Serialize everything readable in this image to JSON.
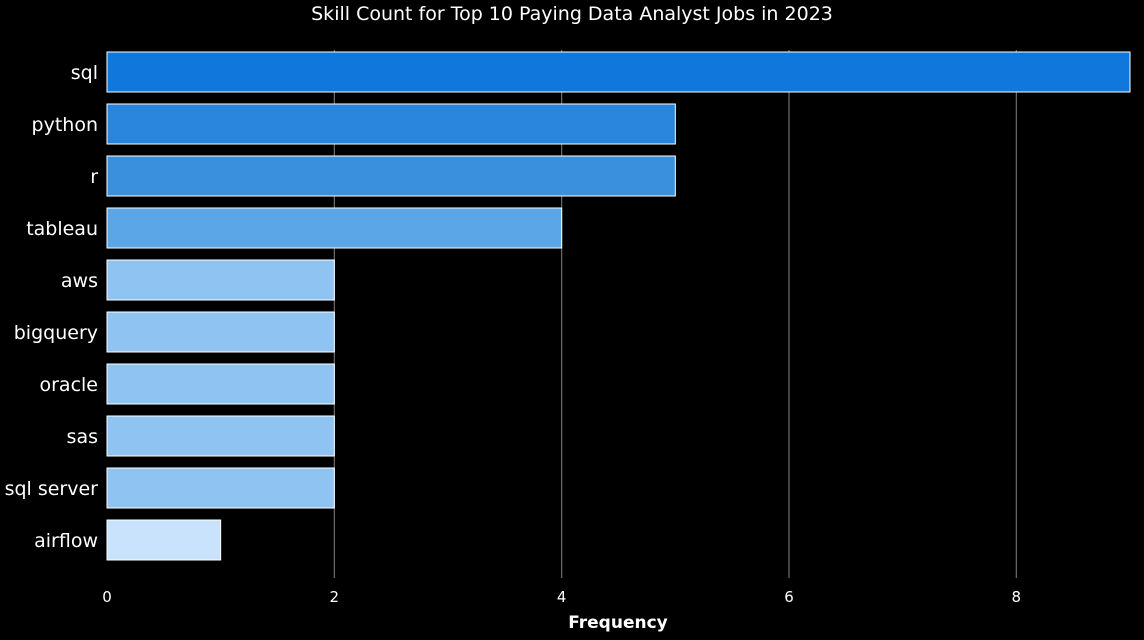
{
  "chart_data": {
    "type": "bar",
    "orientation": "horizontal",
    "title": "Skill Count for Top 10 Paying Data Analyst Jobs in 2023",
    "xlabel": "Frequency",
    "ylabel": "",
    "categories": [
      "sql",
      "python",
      "r",
      "tableau",
      "aws",
      "bigquery",
      "oracle",
      "sas",
      "sql server",
      "airflow"
    ],
    "values": [
      9,
      5,
      5,
      4,
      2,
      2,
      2,
      2,
      2,
      1
    ],
    "xlim": [
      0,
      9
    ],
    "xticks": [
      0,
      2,
      4,
      6,
      8
    ],
    "grid": "vertical",
    "legend": "none",
    "colors": {
      "background": "#000000",
      "text": "#ffffff",
      "grid": "#6e6e6e",
      "bar_edge": "#ffffff",
      "palette_by_value": {
        "9": "#1078dc",
        "5": [
          "#2a85dc",
          "#3b90de"
        ],
        "4": "#5aa6e6",
        "2": "#8ec3f2",
        "1": "#c9e3fd"
      }
    }
  }
}
